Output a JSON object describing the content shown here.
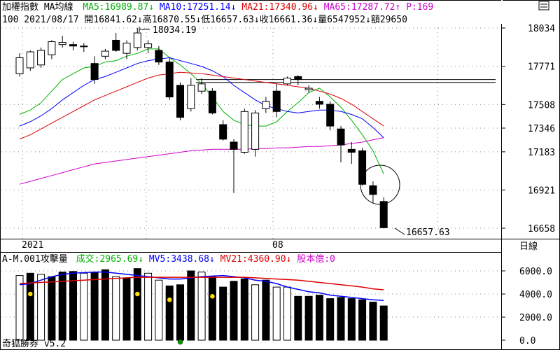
{
  "header": {
    "line1": {
      "title": "加權指數 MA均線",
      "ma5": "MA5:16989.87↓",
      "ma10": "MA10:17251.14↓",
      "ma21": "MA21:17340.96↓",
      "ma65": "MA65:17287.72↑",
      "p": "P:169"
    },
    "line2": "100 2021/08/17 開16841.62↓高16870.55↓低16657.63↓收16661.36↓量6547952↓額29650"
  },
  "period_label": "日線",
  "volume_header": {
    "title": "A-M.001攻擊量",
    "volume": "成交:2965.69↓",
    "mv5": "MV5:3438.68↓",
    "mv21": "MV21:4360.90↓",
    "shares": "股本億:0"
  },
  "footer_text": "奇狐勝券 v5.2",
  "colors": {
    "ma5": "#00b000",
    "ma10": "#0000ff",
    "ma21": "#dd0000",
    "ma65": "#cc00cc",
    "mv5": "#0000ff",
    "mv21": "#dd0000",
    "dot_yellow": "#ffdd00",
    "dot_green": "#009900"
  },
  "chart_data": [
    {
      "type": "candlestick",
      "price_ticks": [
        "18034",
        "17771",
        "17508",
        "17346",
        "17183",
        "16921",
        "16658"
      ],
      "x_labels": [
        "2021",
        "08"
      ],
      "annotations": {
        "high": "18034.19",
        "low": "16657.63"
      },
      "candles": [
        {
          "o": 17720,
          "h": 17860,
          "l": 17700,
          "c": 17830
        },
        {
          "o": 17760,
          "h": 17880,
          "l": 17740,
          "c": 17870
        },
        {
          "o": 17780,
          "h": 17900,
          "l": 17760,
          "c": 17880
        },
        {
          "o": 17850,
          "h": 17950,
          "l": 17820,
          "c": 17940
        },
        {
          "o": 17920,
          "h": 17980,
          "l": 17900,
          "c": 17935
        },
        {
          "o": 17920,
          "h": 17940,
          "l": 17880,
          "c": 17910
        },
        {
          "o": 17910,
          "h": 17930,
          "l": 17870,
          "c": 17905
        },
        {
          "o": 17790,
          "h": 17840,
          "l": 17650,
          "c": 17680
        },
        {
          "o": 17840,
          "h": 17890,
          "l": 17820,
          "c": 17875
        },
        {
          "o": 17950,
          "h": 18000,
          "l": 17870,
          "c": 17880
        },
        {
          "o": 17860,
          "h": 17950,
          "l": 17820,
          "c": 17930
        },
        {
          "o": 17900,
          "h": 18034,
          "l": 17880,
          "c": 18000
        },
        {
          "o": 17900,
          "h": 17950,
          "l": 17860,
          "c": 17925
        },
        {
          "o": 17880,
          "h": 17910,
          "l": 17780,
          "c": 17800
        },
        {
          "o": 17800,
          "h": 17830,
          "l": 17540,
          "c": 17560
        },
        {
          "o": 17640,
          "h": 17660,
          "l": 17400,
          "c": 17420
        },
        {
          "o": 17480,
          "h": 17690,
          "l": 17460,
          "c": 17640
        },
        {
          "o": 17600,
          "h": 17690,
          "l": 17580,
          "c": 17650
        },
        {
          "o": 17600,
          "h": 17620,
          "l": 17440,
          "c": 17450
        },
        {
          "o": 17370,
          "h": 17400,
          "l": 17260,
          "c": 17270
        },
        {
          "o": 17250,
          "h": 17270,
          "l": 16900,
          "c": 17200
        },
        {
          "o": 17180,
          "h": 17480,
          "l": 17170,
          "c": 17460
        },
        {
          "o": 17200,
          "h": 17470,
          "l": 17150,
          "c": 17450
        },
        {
          "o": 17480,
          "h": 17560,
          "l": 17450,
          "c": 17530
        },
        {
          "o": 17600,
          "h": 17650,
          "l": 17420,
          "c": 17460
        },
        {
          "o": 17650,
          "h": 17700,
          "l": 17640,
          "c": 17690
        },
        {
          "o": 17700,
          "h": 17710,
          "l": 17640,
          "c": 17680
        },
        {
          "o": 17610,
          "h": 17640,
          "l": 17590,
          "c": 17620
        },
        {
          "o": 17530,
          "h": 17560,
          "l": 17480,
          "c": 17510
        },
        {
          "o": 17510,
          "h": 17530,
          "l": 17330,
          "c": 17360
        },
        {
          "o": 17340,
          "h": 17360,
          "l": 17110,
          "c": 17230
        },
        {
          "o": 17200,
          "h": 17250,
          "l": 17100,
          "c": 17180
        },
        {
          "o": 17190,
          "h": 17210,
          "l": 16950,
          "c": 16960
        },
        {
          "o": 16950,
          "h": 16980,
          "l": 16830,
          "c": 16890
        },
        {
          "o": 16841.62,
          "h": 16870.55,
          "l": 16657.63,
          "c": 16661.36
        }
      ],
      "ma_series": [
        {
          "key": "ma5",
          "values": [
            17440,
            17470,
            17520,
            17600,
            17680,
            17720,
            17760,
            17770,
            17800,
            17810,
            17840,
            17860,
            17890,
            17890,
            17830,
            17780,
            17720,
            17650,
            17560,
            17460,
            17400,
            17370,
            17360,
            17360,
            17390,
            17460,
            17520,
            17590,
            17620,
            17560,
            17490,
            17400,
            17300,
            17190,
            17030
          ]
        },
        {
          "key": "ma10",
          "values": [
            17360,
            17390,
            17430,
            17480,
            17540,
            17590,
            17640,
            17680,
            17700,
            17730,
            17760,
            17790,
            17810,
            17820,
            17830,
            17810,
            17790,
            17770,
            17740,
            17700,
            17640,
            17590,
            17540,
            17500,
            17480,
            17460,
            17450,
            17460,
            17470,
            17470,
            17460,
            17440,
            17410,
            17350,
            17280
          ]
        },
        {
          "key": "ma21",
          "values": [
            17270,
            17300,
            17340,
            17380,
            17420,
            17460,
            17500,
            17540,
            17570,
            17600,
            17630,
            17660,
            17690,
            17710,
            17720,
            17730,
            17725,
            17720,
            17710,
            17700,
            17690,
            17680,
            17670,
            17660,
            17650,
            17640,
            17630,
            17620,
            17600,
            17580,
            17550,
            17510,
            17460,
            17410,
            17360
          ]
        },
        {
          "key": "ma65",
          "values": [
            16960,
            16980,
            17000,
            17020,
            17040,
            17060,
            17080,
            17100,
            17110,
            17120,
            17130,
            17140,
            17150,
            17160,
            17170,
            17180,
            17190,
            17195,
            17200,
            17200,
            17200,
            17200,
            17205,
            17205,
            17210,
            17210,
            17215,
            17220,
            17220,
            17225,
            17230,
            17240,
            17250,
            17265,
            17280
          ]
        }
      ],
      "reference_lines": [
        17680,
        17660
      ]
    },
    {
      "type": "bar",
      "y_ticks": [
        "6000.0",
        "4000.0",
        "2000.0",
        "0.0"
      ],
      "ylim": [
        0,
        7000
      ],
      "bars": [
        {
          "v": 5600,
          "up": true
        },
        {
          "v": 5800,
          "up": false
        },
        {
          "v": 5700,
          "up": true
        },
        {
          "v": 5500,
          "up": false
        },
        {
          "v": 5900,
          "up": false
        },
        {
          "v": 5950,
          "up": false
        },
        {
          "v": 5800,
          "up": true
        },
        {
          "v": 5900,
          "up": false
        },
        {
          "v": 6100,
          "up": false
        },
        {
          "v": 5500,
          "up": true
        },
        {
          "v": 5400,
          "up": false
        },
        {
          "v": 6200,
          "up": false
        },
        {
          "v": 5800,
          "up": true
        },
        {
          "v": 5200,
          "up": true
        },
        {
          "v": 4700,
          "up": false
        },
        {
          "v": 4800,
          "up": false
        },
        {
          "v": 6000,
          "up": false
        },
        {
          "v": 5900,
          "up": true
        },
        {
          "v": 5500,
          "up": false
        },
        {
          "v": 4600,
          "up": false
        },
        {
          "v": 5100,
          "up": false
        },
        {
          "v": 5300,
          "up": false
        },
        {
          "v": 4800,
          "up": true
        },
        {
          "v": 5200,
          "up": false
        },
        {
          "v": 4600,
          "up": true
        },
        {
          "v": 4600,
          "up": true
        },
        {
          "v": 3800,
          "up": false
        },
        {
          "v": 3800,
          "up": false
        },
        {
          "v": 3900,
          "up": false
        },
        {
          "v": 3600,
          "up": false
        },
        {
          "v": 3700,
          "up": false
        },
        {
          "v": 3600,
          "up": false
        },
        {
          "v": 3500,
          "up": false
        },
        {
          "v": 3300,
          "up": false
        },
        {
          "v": 2965.69,
          "up": false
        }
      ],
      "mv5": [
        4800,
        4900,
        5200,
        5500,
        5700,
        5800,
        5850,
        5900,
        5900,
        5800,
        5700,
        5600,
        5500,
        5400,
        5300,
        5300,
        5400,
        5500,
        5550,
        5600,
        5500,
        5400,
        5200,
        5100,
        4900,
        4600,
        4400,
        4200,
        4100,
        3900,
        3800,
        3700,
        3600,
        3500,
        3438.68
      ],
      "mv21": [
        4900,
        4950,
        5000,
        5050,
        5100,
        5150,
        5200,
        5250,
        5300,
        5350,
        5400,
        5450,
        5450,
        5450,
        5450,
        5450,
        5450,
        5450,
        5450,
        5450,
        5450,
        5450,
        5400,
        5350,
        5300,
        5250,
        5200,
        5100,
        5000,
        4900,
        4800,
        4700,
        4600,
        4450,
        4360.9
      ],
      "dots": [
        {
          "i": 1,
          "v": 4000,
          "c": "dot_yellow"
        },
        {
          "i": 11,
          "v": 4000,
          "c": "dot_yellow"
        },
        {
          "i": 14,
          "v": 3500,
          "c": "dot_yellow"
        },
        {
          "i": 18,
          "v": 3800,
          "c": "dot_yellow"
        },
        {
          "i": 15,
          "v": -150,
          "c": "dot_green"
        }
      ]
    }
  ]
}
